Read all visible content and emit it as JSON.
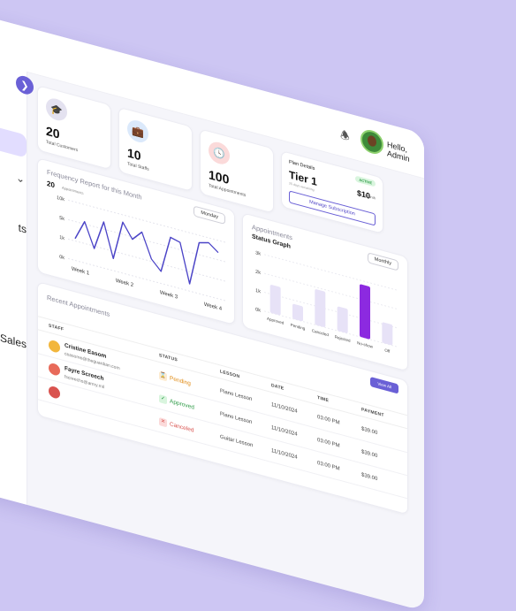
{
  "header": {
    "user_name": "Hello, Admin",
    "icons": {
      "notification": "bell-icon",
      "dropdown": "chevron-down-icon"
    }
  },
  "sidebar": {
    "collapse_icon": "chevron-right-icon",
    "items": [
      {
        "label": "ts"
      },
      {
        "label": "Sales"
      }
    ]
  },
  "stats": [
    {
      "value": "20",
      "label": "Total Customers",
      "icon": "graduation-cap-icon",
      "icon_bg": "#e4e2f0",
      "icon_color": "#6a6a80"
    },
    {
      "value": "10",
      "label": "Total Staffs",
      "icon": "briefcase-icon",
      "icon_bg": "#dbe9fb",
      "icon_color": "#3f7ad8"
    },
    {
      "value": "100",
      "label": "Total Appointments",
      "icon": "clock-icon",
      "icon_bg": "#fbdada",
      "icon_color": "#d9534f"
    }
  ],
  "plan": {
    "title": "Plan Details",
    "badge": "ACTIVE",
    "tier": "Tier 1",
    "sub": "25 days remaining",
    "price": "$10",
    "price_unit": "/month",
    "button": "Manage Subscription"
  },
  "frequency": {
    "title": "Frequency Report for this Month",
    "filter": "Monday",
    "chart_data": {
      "type": "line",
      "title": "Frequency Report for this Month",
      "value_label": "20",
      "unit_label": "Appointments",
      "y_ticks": [
        "10k",
        "5k",
        "1k",
        "0k"
      ],
      "ylim": [
        0,
        12
      ],
      "x_ticks": [
        "Week 1",
        "Week 2",
        "Week 3",
        "Week 4"
      ],
      "series": [
        {
          "values": [
            4.5,
            8.5,
            3.5,
            9.5,
            2.5,
            10.5,
            7.5,
            9.5,
            4.5,
            2.5,
            10,
            9.5,
            1.5,
            10.5,
            11,
            9.5
          ]
        }
      ],
      "color": "#4b44c7",
      "grid": true
    }
  },
  "appointments": {
    "title": "Appointments",
    "subtitle": "Status Graph",
    "filter": "Monthly",
    "chart_data": {
      "type": "bar",
      "y_ticks": [
        "3k",
        "2k",
        "1k",
        "0k"
      ],
      "ylim": [
        0,
        3
      ],
      "categories": [
        "Approved",
        "Pending",
        "Canceled",
        "Rejected",
        "No-show",
        "Off"
      ],
      "values": [
        1.5,
        0.8,
        1.9,
        1.3,
        2.8,
        1.1
      ],
      "colors": [
        "#e7e2f7",
        "#e7e2f7",
        "#e7e2f7",
        "#e7e2f7",
        "#8c2ae0",
        "#e7e2f7"
      ],
      "highlight": "No-show"
    }
  },
  "recent": {
    "title": "Recent Appointments",
    "view_all": "View All",
    "columns": [
      "STAFF",
      "STATUS",
      "LESSON",
      "DATE",
      "TIME",
      "PAYMENT"
    ],
    "rows": [
      {
        "name": "Cristine Easom",
        "email": "ceasome@theguardian.com",
        "status": "Pending",
        "status_icon": "hourglass-icon",
        "status_color": "#e08a12",
        "status_bg": "#fdebd0",
        "lesson": "Piano Lesson",
        "date": "11/10/2024",
        "time": "03:00 PM",
        "payment": "$39.00",
        "avatar_color": "#f2b63c"
      },
      {
        "name": "Fayre Screech",
        "email": "fscreechs@army.mil",
        "status": "Approved",
        "status_icon": "check-circle-icon",
        "status_color": "#2e9b47",
        "status_bg": "#d9f5de",
        "lesson": "Piano Lesson",
        "date": "11/10/2024",
        "time": "03:00 PM",
        "payment": "$39.00",
        "avatar_color": "#e86a5a"
      },
      {
        "name": "",
        "email": "",
        "status": "Canceled",
        "status_icon": "x-circle-icon",
        "status_color": "#d9534f",
        "status_bg": "#fbdada",
        "lesson": "Guitar Lesson",
        "date": "11/10/2024",
        "time": "03:00 PM",
        "payment": "$39.00",
        "avatar_color": "#d9534f"
      }
    ]
  }
}
